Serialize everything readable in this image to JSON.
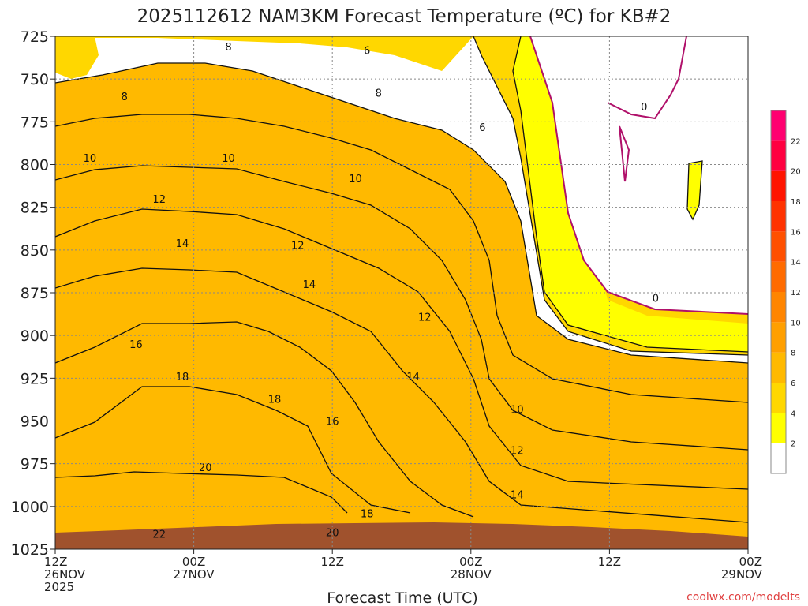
{
  "chart_data": {
    "type": "heatmap",
    "title": "2025112612 NAM3KM Forecast Temperature (ºC) for KB#2",
    "xlabel": "Forecast Time (UTC)",
    "ylabel": "",
    "credit": "coolwx.com/modelts",
    "x_range_hours": [
      0,
      60
    ],
    "y_range_hpa": [
      725,
      1025
    ],
    "y_scale": "pressure (increasing downward)",
    "grid": true,
    "y_ticks": [
      "725",
      "750",
      "775",
      "800",
      "825",
      "850",
      "875",
      "900",
      "925",
      "950",
      "975",
      "1000",
      "1025"
    ],
    "x_ticks": [
      {
        "hour": 0,
        "line1": "12Z",
        "line2": "26NOV",
        "line3": "2025"
      },
      {
        "hour": 12,
        "line1": "00Z",
        "line2": "27NOV",
        "line3": ""
      },
      {
        "hour": 24,
        "line1": "12Z",
        "line2": "",
        "line3": ""
      },
      {
        "hour": 36,
        "line1": "00Z",
        "line2": "28NOV",
        "line3": ""
      },
      {
        "hour": 48,
        "line1": "12Z",
        "line2": "",
        "line3": ""
      },
      {
        "hour": 60,
        "line1": "00Z",
        "line2": "29NOV",
        "line3": ""
      }
    ],
    "colorbar": {
      "placement": "right",
      "levels": [
        "2",
        "4",
        "6",
        "8",
        "10",
        "12",
        "14",
        "16",
        "18",
        "20",
        "22"
      ],
      "colors": [
        "#ffffff",
        "#ffff00",
        "#ffd700",
        "#ffb900",
        "#ff9f00",
        "#ff8500",
        "#ff6b00",
        "#ff5000",
        "#ff3200",
        "#ff1400",
        "#ff0040",
        "#ff0070"
      ]
    },
    "terrain_color": "#a0522d",
    "contour_labels": [
      {
        "text": "6",
        "h": 27,
        "p": 733
      },
      {
        "text": "8",
        "h": 15,
        "p": 731
      },
      {
        "text": "8",
        "h": 6,
        "p": 760
      },
      {
        "text": "8",
        "h": 28,
        "p": 758
      },
      {
        "text": "6",
        "h": 37,
        "p": 778
      },
      {
        "text": "0",
        "h": 51,
        "p": 766
      },
      {
        "text": "10",
        "h": 3,
        "p": 796
      },
      {
        "text": "10",
        "h": 15,
        "p": 796
      },
      {
        "text": "10",
        "h": 26,
        "p": 808
      },
      {
        "text": "12",
        "h": 9,
        "p": 820
      },
      {
        "text": "14",
        "h": 11,
        "p": 846
      },
      {
        "text": "12",
        "h": 21,
        "p": 847
      },
      {
        "text": "14",
        "h": 22,
        "p": 870
      },
      {
        "text": "12",
        "h": 32,
        "p": 889
      },
      {
        "text": "0",
        "h": 52,
        "p": 878
      },
      {
        "text": "16",
        "h": 7,
        "p": 905
      },
      {
        "text": "18",
        "h": 11,
        "p": 924
      },
      {
        "text": "14",
        "h": 31,
        "p": 924
      },
      {
        "text": "18",
        "h": 19,
        "p": 937
      },
      {
        "text": "16",
        "h": 24,
        "p": 950
      },
      {
        "text": "10",
        "h": 40,
        "p": 943
      },
      {
        "text": "12",
        "h": 40,
        "p": 967
      },
      {
        "text": "20",
        "h": 13,
        "p": 977
      },
      {
        "text": "14",
        "h": 40,
        "p": 993
      },
      {
        "text": "18",
        "h": 27,
        "p": 1004
      },
      {
        "text": "22",
        "h": 9,
        "p": 1016
      },
      {
        "text": "20",
        "h": 24,
        "p": 1015
      }
    ]
  }
}
